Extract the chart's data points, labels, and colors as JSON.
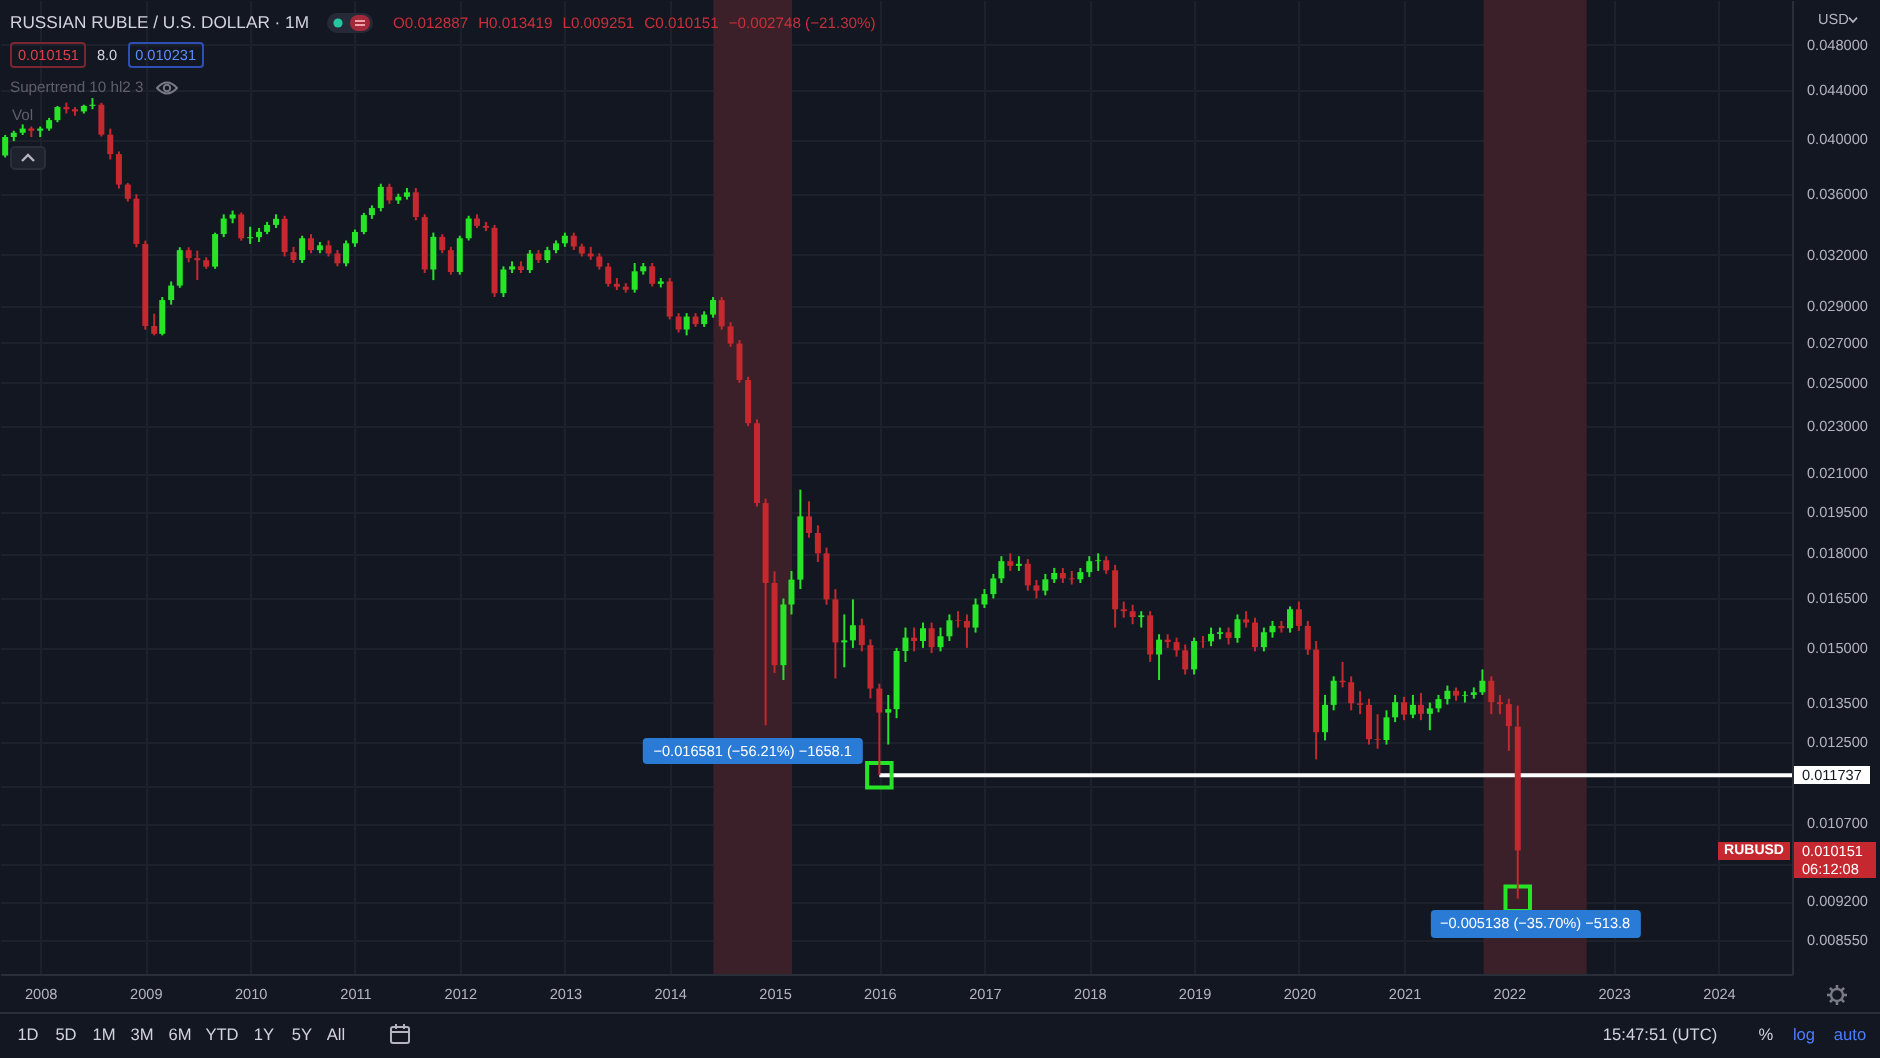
{
  "chart_data": {
    "type": "candlestick",
    "title": "RUSSIAN RUBLE / U.S. DOLLAR · 1M",
    "xlim": [
      "2007-08-14",
      "2024-09-13"
    ],
    "xticks": [
      "2008",
      "2009",
      "2010",
      "2011",
      "2012",
      "2013",
      "2014",
      "2015",
      "2016",
      "2017",
      "2018",
      "2019",
      "2020",
      "2021",
      "2022",
      "2023",
      "2024"
    ],
    "ylim": [
      0.008,
      0.0523
    ],
    "yticks": [
      {
        "value": 0.048,
        "label": "0.048000"
      },
      {
        "value": 0.044,
        "label": "0.044000"
      },
      {
        "value": 0.04,
        "label": "0.040000"
      },
      {
        "value": 0.036,
        "label": "0.036000"
      },
      {
        "value": 0.032,
        "label": "0.032000"
      },
      {
        "value": 0.029,
        "label": "0.029000"
      },
      {
        "value": 0.027,
        "label": "0.027000"
      },
      {
        "value": 0.025,
        "label": "0.025000"
      },
      {
        "value": 0.023,
        "label": "0.023000"
      },
      {
        "value": 0.021,
        "label": "0.021000"
      },
      {
        "value": 0.0195,
        "label": "0.019500"
      },
      {
        "value": 0.018,
        "label": "0.018000"
      },
      {
        "value": 0.0165,
        "label": "0.016500"
      },
      {
        "value": 0.015,
        "label": "0.015000"
      },
      {
        "value": 0.0135,
        "label": "0.013500"
      },
      {
        "value": 0.0125,
        "label": "0.012500"
      },
      {
        "value": 0.0115,
        "label": null
      },
      {
        "value": 0.0107,
        "label": "0.010700"
      },
      {
        "value": 0.0099,
        "label": null
      },
      {
        "value": 0.0092,
        "label": "0.009200"
      },
      {
        "value": 0.00855,
        "label": "0.008550"
      }
    ],
    "log": true,
    "grid": true,
    "series": [
      {
        "type": "line",
        "x": [
          "2016-01",
          "2024-09-13"
        ],
        "values": [
          0.011737,
          0.011737
        ],
        "color": "#ffffff",
        "value_labels": [
          null,
          "0.011737"
        ]
      },
      {
        "type": "scatter",
        "x": [
          "2016-01",
          "2022-02"
        ],
        "values": [
          0.011737,
          0.009251
        ],
        "color": "#28e428",
        "marker": "square"
      },
      {
        "x": [
          "2007-09",
          "2007-10",
          "2007-11",
          "2007-12",
          "2008-01",
          "2008-02",
          "2008-03",
          "2008-04",
          "2008-05",
          "2008-06",
          "2008-07",
          "2008-08",
          "2008-09",
          "2008-10",
          "2008-11",
          "2008-12",
          "2009-01",
          "2009-02",
          "2009-03",
          "2009-04",
          "2009-05",
          "2009-06",
          "2009-07",
          "2009-08",
          "2009-09",
          "2009-10",
          "2009-11",
          "2009-12",
          "2010-01",
          "2010-02",
          "2010-03",
          "2010-04",
          "2010-05",
          "2010-06",
          "2010-07",
          "2010-08",
          "2010-09",
          "2010-10",
          "2010-11",
          "2010-12",
          "2011-01",
          "2011-02",
          "2011-03",
          "2011-04",
          "2011-05",
          "2011-06",
          "2011-07",
          "2011-08",
          "2011-09",
          "2011-10",
          "2011-11",
          "2011-12",
          "2012-01",
          "2012-02",
          "2012-03",
          "2012-04",
          "2012-05",
          "2012-06",
          "2012-07",
          "2012-08",
          "2012-09",
          "2012-10",
          "2012-11",
          "2012-12",
          "2013-01",
          "2013-02",
          "2013-03",
          "2013-04",
          "2013-05",
          "2013-06",
          "2013-07",
          "2013-08",
          "2013-09",
          "2013-10",
          "2013-11",
          "2013-12",
          "2014-01",
          "2014-02",
          "2014-03",
          "2014-04",
          "2014-05",
          "2014-06",
          "2014-07",
          "2014-08",
          "2014-09",
          "2014-10",
          "2014-11",
          "2014-12",
          "2015-01",
          "2015-02",
          "2015-03",
          "2015-04",
          "2015-05",
          "2015-06",
          "2015-07",
          "2015-08",
          "2015-09",
          "2015-10",
          "2015-11",
          "2015-12",
          "2016-01",
          "2016-02",
          "2016-03",
          "2016-04",
          "2016-05",
          "2016-06",
          "2016-07",
          "2016-08",
          "2016-09",
          "2016-10",
          "2016-11",
          "2016-12",
          "2017-01",
          "2017-02",
          "2017-03",
          "2017-04",
          "2017-05",
          "2017-06",
          "2017-07",
          "2017-08",
          "2017-09",
          "2017-10",
          "2017-11",
          "2017-12",
          "2018-01",
          "2018-02",
          "2018-03",
          "2018-04",
          "2018-05",
          "2018-06",
          "2018-07",
          "2018-08",
          "2018-09",
          "2018-10",
          "2018-11",
          "2018-12",
          "2019-01",
          "2019-02",
          "2019-03",
          "2019-04",
          "2019-05",
          "2019-06",
          "2019-07",
          "2019-08",
          "2019-09",
          "2019-10",
          "2019-11",
          "2019-12",
          "2020-01",
          "2020-02",
          "2020-03",
          "2020-04",
          "2020-05",
          "2020-06",
          "2020-07",
          "2020-08",
          "2020-09",
          "2020-10",
          "2020-11",
          "2020-12",
          "2021-01",
          "2021-02",
          "2021-03",
          "2021-04",
          "2021-05",
          "2021-06",
          "2021-07",
          "2021-08",
          "2021-09",
          "2021-10",
          "2021-11",
          "2021-12",
          "2022-01",
          "2022-02"
        ],
        "ohlc": [
          [
            0.03876,
            0.04032,
            0.03861,
            0.04016
          ],
          [
            0.04016,
            0.04065,
            0.03984,
            0.04049
          ],
          [
            0.04049,
            0.04115,
            0.04032,
            0.04082
          ],
          [
            0.04082,
            0.04098,
            0.04016,
            0.04065
          ],
          [
            0.04065,
            0.04098,
            0.04016,
            0.04082
          ],
          [
            0.04082,
            0.04167,
            0.04065,
            0.04149
          ],
          [
            0.04149,
            0.04264,
            0.04132,
            0.04255
          ],
          [
            0.04255,
            0.04292,
            0.04202,
            0.04237
          ],
          [
            0.04237,
            0.04255,
            0.04184,
            0.04219
          ],
          [
            0.04219,
            0.04274,
            0.04202,
            0.04264
          ],
          [
            0.04264,
            0.04329,
            0.04237,
            0.04274
          ],
          [
            0.04274,
            0.0429,
            0.0402,
            0.04034
          ],
          [
            0.04034,
            0.04082,
            0.03846,
            0.03886
          ],
          [
            0.03886,
            0.03906,
            0.03636,
            0.03664
          ],
          [
            0.03664,
            0.03676,
            0.03546,
            0.03566
          ],
          [
            0.03566,
            0.03597,
            0.03247,
            0.03268
          ],
          [
            0.03268,
            0.03289,
            0.0277,
            0.0279
          ],
          [
            0.0279,
            0.02857,
            0.0274,
            0.02748
          ],
          [
            0.02748,
            0.0295,
            0.0274,
            0.02933
          ],
          [
            0.02933,
            0.0304,
            0.02907,
            0.03016
          ],
          [
            0.03016,
            0.03247,
            0.03003,
            0.03229
          ],
          [
            0.03229,
            0.03247,
            0.03155,
            0.0318
          ],
          [
            0.0318,
            0.03226,
            0.03048,
            0.03167
          ],
          [
            0.03167,
            0.03185,
            0.03115,
            0.03128
          ],
          [
            0.03128,
            0.0334,
            0.03115,
            0.03331
          ],
          [
            0.03331,
            0.0346,
            0.03311,
            0.03432
          ],
          [
            0.03432,
            0.03485,
            0.03401,
            0.03459
          ],
          [
            0.03459,
            0.03472,
            0.03289,
            0.03304
          ],
          [
            0.03304,
            0.03378,
            0.03268,
            0.03311
          ],
          [
            0.03311,
            0.0337,
            0.0328,
            0.03345
          ],
          [
            0.03345,
            0.0341,
            0.0333,
            0.0339
          ],
          [
            0.0339,
            0.0346,
            0.0337,
            0.0343
          ],
          [
            0.0343,
            0.0345,
            0.0319,
            0.03217
          ],
          [
            0.03217,
            0.0325,
            0.0315,
            0.03168
          ],
          [
            0.03168,
            0.0332,
            0.0315,
            0.03304
          ],
          [
            0.03304,
            0.0333,
            0.0321,
            0.03229
          ],
          [
            0.03229,
            0.0328,
            0.0321,
            0.03259
          ],
          [
            0.03259,
            0.0329,
            0.0319,
            0.03208
          ],
          [
            0.03208,
            0.0323,
            0.0313,
            0.03148
          ],
          [
            0.03148,
            0.0329,
            0.0313,
            0.03272
          ],
          [
            0.03272,
            0.0336,
            0.0325,
            0.03344
          ],
          [
            0.03344,
            0.0347,
            0.0333,
            0.03455
          ],
          [
            0.03455,
            0.0352,
            0.0343,
            0.03502
          ],
          [
            0.03502,
            0.0367,
            0.0348,
            0.03648
          ],
          [
            0.03648,
            0.0367,
            0.0353,
            0.03554
          ],
          [
            0.03554,
            0.036,
            0.0353,
            0.03579
          ],
          [
            0.03579,
            0.0364,
            0.0356,
            0.0361
          ],
          [
            0.0361,
            0.0364,
            0.0342,
            0.03442
          ],
          [
            0.03442,
            0.0346,
            0.0309,
            0.03111
          ],
          [
            0.03111,
            0.0334,
            0.03048,
            0.03313
          ],
          [
            0.03313,
            0.0333,
            0.0321,
            0.03229
          ],
          [
            0.03229,
            0.0325,
            0.0308,
            0.03096
          ],
          [
            0.03096,
            0.0332,
            0.0308,
            0.03304
          ],
          [
            0.03304,
            0.0345,
            0.0329,
            0.03432
          ],
          [
            0.03432,
            0.0346,
            0.0337,
            0.03384
          ],
          [
            0.03384,
            0.0341,
            0.0335,
            0.03371
          ],
          [
            0.03371,
            0.0339,
            0.0295,
            0.02972
          ],
          [
            0.02972,
            0.0313,
            0.0295,
            0.03111
          ],
          [
            0.03111,
            0.0316,
            0.0309,
            0.0313
          ],
          [
            0.0313,
            0.0316,
            0.0309,
            0.03108
          ],
          [
            0.03108,
            0.0323,
            0.0309,
            0.03208
          ],
          [
            0.03208,
            0.0323,
            0.0315,
            0.03168
          ],
          [
            0.03168,
            0.0325,
            0.0315,
            0.03229
          ],
          [
            0.03229,
            0.0329,
            0.0321,
            0.03272
          ],
          [
            0.03272,
            0.0334,
            0.0325,
            0.0332
          ],
          [
            0.0332,
            0.0334,
            0.0323,
            0.03252
          ],
          [
            0.03252,
            0.0327,
            0.0319,
            0.03208
          ],
          [
            0.03208,
            0.0325,
            0.0317,
            0.0319
          ],
          [
            0.0319,
            0.0321,
            0.0311,
            0.03128
          ],
          [
            0.03128,
            0.0315,
            0.0301,
            0.03026
          ],
          [
            0.03026,
            0.0306,
            0.0299,
            0.03009
          ],
          [
            0.03009,
            0.0303,
            0.02975,
            0.02992
          ],
          [
            0.02992,
            0.0315,
            0.02975,
            0.031
          ],
          [
            0.031,
            0.0315,
            0.0308,
            0.0313
          ],
          [
            0.0313,
            0.0315,
            0.0301,
            0.03026
          ],
          [
            0.03026,
            0.0306,
            0.03005,
            0.0304
          ],
          [
            0.0304,
            0.0306,
            0.02825,
            0.02841
          ],
          [
            0.02841,
            0.0286,
            0.02755,
            0.02771
          ],
          [
            0.02771,
            0.0286,
            0.0274,
            0.02841
          ],
          [
            0.02841,
            0.0286,
            0.02785,
            0.028
          ],
          [
            0.028,
            0.0287,
            0.02785,
            0.02852
          ],
          [
            0.02852,
            0.0295,
            0.02835,
            0.02933
          ],
          [
            0.02933,
            0.0295,
            0.0277,
            0.02788
          ],
          [
            0.02788,
            0.0281,
            0.0268,
            0.02697
          ],
          [
            0.02697,
            0.02715,
            0.025,
            0.02514
          ],
          [
            0.02514,
            0.0253,
            0.023,
            0.02313
          ],
          [
            0.02313,
            0.0233,
            0.0197,
            0.01983
          ],
          [
            0.01983,
            0.02,
            0.01292,
            0.017
          ],
          [
            0.017,
            0.01739,
            0.01429,
            0.01451
          ],
          [
            0.01451,
            0.0165,
            0.0141,
            0.01631
          ],
          [
            0.01631,
            0.0174,
            0.016,
            0.01711
          ],
          [
            0.01711,
            0.02035,
            0.0168,
            0.01933
          ],
          [
            0.01933,
            0.0199,
            0.01855,
            0.01872
          ],
          [
            0.01872,
            0.019,
            0.0177,
            0.018
          ],
          [
            0.018,
            0.0182,
            0.0163,
            0.01647
          ],
          [
            0.01647,
            0.0168,
            0.01414,
            0.01516
          ],
          [
            0.01516,
            0.016,
            0.01445,
            0.01522
          ],
          [
            0.01522,
            0.01647,
            0.015,
            0.01567
          ],
          [
            0.01567,
            0.01587,
            0.0149,
            0.01508
          ],
          [
            0.01508,
            0.01525,
            0.01361,
            0.01387
          ],
          [
            0.01387,
            0.014,
            0.01174,
            0.01324
          ],
          [
            0.01324,
            0.0137,
            0.01245,
            0.01333
          ],
          [
            0.01333,
            0.015,
            0.0131,
            0.01491
          ],
          [
            0.01491,
            0.0156,
            0.0146,
            0.0153
          ],
          [
            0.0153,
            0.0156,
            0.0149,
            0.0152
          ],
          [
            0.0152,
            0.01575,
            0.015,
            0.01558
          ],
          [
            0.01558,
            0.01575,
            0.01485,
            0.01502
          ],
          [
            0.01502,
            0.0156,
            0.0149,
            0.01534
          ],
          [
            0.01534,
            0.016,
            0.0152,
            0.01582
          ],
          [
            0.01582,
            0.0161,
            0.0156,
            0.0158
          ],
          [
            0.0158,
            0.016,
            0.015,
            0.0156
          ],
          [
            0.0156,
            0.0165,
            0.01545,
            0.01631
          ],
          [
            0.01631,
            0.0168,
            0.0162,
            0.01664
          ],
          [
            0.01664,
            0.0173,
            0.0165,
            0.01715
          ],
          [
            0.01715,
            0.0179,
            0.017,
            0.01773
          ],
          [
            0.01773,
            0.018,
            0.0174,
            0.01757
          ],
          [
            0.01757,
            0.0179,
            0.0174,
            0.01764
          ],
          [
            0.01764,
            0.0178,
            0.01675,
            0.01692
          ],
          [
            0.01692,
            0.0171,
            0.0165,
            0.01675
          ],
          [
            0.01675,
            0.0173,
            0.0166,
            0.01712
          ],
          [
            0.01712,
            0.0175,
            0.017,
            0.01733
          ],
          [
            0.01733,
            0.0175,
            0.017,
            0.01715
          ],
          [
            0.01715,
            0.0174,
            0.01695,
            0.01712
          ],
          [
            0.01712,
            0.0175,
            0.017,
            0.01736
          ],
          [
            0.01736,
            0.0179,
            0.0172,
            0.01773
          ],
          [
            0.01773,
            0.018,
            0.0174,
            0.01776
          ],
          [
            0.01776,
            0.0179,
            0.0173,
            0.01742
          ],
          [
            0.01742,
            0.0176,
            0.0156,
            0.01616
          ],
          [
            0.01616,
            0.0164,
            0.0159,
            0.0161
          ],
          [
            0.0161,
            0.0163,
            0.0157,
            0.01592
          ],
          [
            0.01592,
            0.0161,
            0.0156,
            0.01597
          ],
          [
            0.01597,
            0.0161,
            0.0146,
            0.01481
          ],
          [
            0.01481,
            0.0154,
            0.0141,
            0.01524
          ],
          [
            0.01524,
            0.0154,
            0.015,
            0.01517
          ],
          [
            0.01517,
            0.0153,
            0.01475,
            0.01493
          ],
          [
            0.01493,
            0.0151,
            0.01425,
            0.01439
          ],
          [
            0.01439,
            0.0153,
            0.01425,
            0.0152
          ],
          [
            0.0152,
            0.01535,
            0.015,
            0.01519
          ],
          [
            0.01519,
            0.0156,
            0.01505,
            0.01541
          ],
          [
            0.01541,
            0.0156,
            0.01525,
            0.01546
          ],
          [
            0.01546,
            0.0156,
            0.0151,
            0.01529
          ],
          [
            0.01529,
            0.016,
            0.01515,
            0.01585
          ],
          [
            0.01585,
            0.0161,
            0.0156,
            0.01575
          ],
          [
            0.01575,
            0.0159,
            0.0149,
            0.01502
          ],
          [
            0.01502,
            0.0156,
            0.0149,
            0.01546
          ],
          [
            0.01546,
            0.0158,
            0.0153,
            0.01565
          ],
          [
            0.01565,
            0.0158,
            0.01545,
            0.01558
          ],
          [
            0.01558,
            0.01625,
            0.01545,
            0.01616
          ],
          [
            0.01616,
            0.0164,
            0.0155,
            0.01565
          ],
          [
            0.01565,
            0.0158,
            0.0148,
            0.01495
          ],
          [
            0.01495,
            0.0152,
            0.0121,
            0.01275
          ],
          [
            0.01275,
            0.0137,
            0.01255,
            0.01344
          ],
          [
            0.01344,
            0.0142,
            0.0133,
            0.01408
          ],
          [
            0.01408,
            0.0146,
            0.0139,
            0.01404
          ],
          [
            0.01404,
            0.0142,
            0.0133,
            0.01348
          ],
          [
            0.01348,
            0.0138,
            0.0132,
            0.01344
          ],
          [
            0.01344,
            0.0136,
            0.01245,
            0.01258
          ],
          [
            0.01258,
            0.0132,
            0.01235,
            0.01256
          ],
          [
            0.01256,
            0.0133,
            0.01245,
            0.01312
          ],
          [
            0.01312,
            0.0137,
            0.013,
            0.01351
          ],
          [
            0.01351,
            0.01365,
            0.01305,
            0.01319
          ],
          [
            0.01319,
            0.0137,
            0.0131,
            0.01344
          ],
          [
            0.01344,
            0.01375,
            0.01305,
            0.01321
          ],
          [
            0.01321,
            0.0135,
            0.0128,
            0.01335
          ],
          [
            0.01335,
            0.0137,
            0.01325,
            0.01359
          ],
          [
            0.01359,
            0.01395,
            0.01345,
            0.01381
          ],
          [
            0.01381,
            0.0139,
            0.01355,
            0.01368
          ],
          [
            0.01368,
            0.0138,
            0.0135,
            0.0137
          ],
          [
            0.0137,
            0.0139,
            0.0136,
            0.01377
          ],
          [
            0.01377,
            0.01439,
            0.0137,
            0.01408
          ],
          [
            0.01408,
            0.0142,
            0.0132,
            0.01351
          ],
          [
            0.01351,
            0.0137,
            0.0132,
            0.01346
          ],
          [
            0.01346,
            0.0136,
            0.0123,
            0.0129
          ],
          [
            0.012887,
            0.013419,
            0.009251,
            0.010151
          ]
        ],
        "colors": [
          "#28e428",
          "#28e428",
          "#28e428",
          "#c5282e",
          "#28e428",
          "#28e428",
          "#28e428",
          "#c5282e",
          "#c5282e",
          "#28e428",
          "#28e428",
          "#c5282e",
          "#c5282e",
          "#c5282e",
          "#c5282e",
          "#c5282e",
          "#c5282e",
          "#c5282e",
          "#28e428",
          "#28e428",
          "#28e428",
          "#c5282e",
          "#c5282e",
          "#c5282e",
          "#28e428",
          "#28e428",
          "#28e428",
          "#c5282e",
          "#28e428",
          "#28e428",
          "#28e428",
          "#28e428",
          "#c5282e",
          "#c5282e",
          "#28e428",
          "#c5282e",
          "#28e428",
          "#c5282e",
          "#c5282e",
          "#28e428",
          "#28e428",
          "#28e428",
          "#28e428",
          "#28e428",
          "#c5282e",
          "#28e428",
          "#28e428",
          "#c5282e",
          "#c5282e",
          "#28e428",
          "#c5282e",
          "#c5282e",
          "#28e428",
          "#28e428",
          "#c5282e",
          "#c5282e",
          "#c5282e",
          "#28e428",
          "#28e428",
          "#c5282e",
          "#28e428",
          "#c5282e",
          "#28e428",
          "#28e428",
          "#28e428",
          "#c5282e",
          "#c5282e",
          "#c5282e",
          "#c5282e",
          "#c5282e",
          "#c5282e",
          "#c5282e",
          "#28e428",
          "#28e428",
          "#c5282e",
          "#28e428",
          "#c5282e",
          "#c5282e",
          "#28e428",
          "#c5282e",
          "#28e428",
          "#28e428",
          "#c5282e",
          "#c5282e",
          "#c5282e",
          "#c5282e",
          "#c5282e",
          "#c5282e",
          "#c5282e",
          "#28e428",
          "#28e428",
          "#28e428",
          "#c5282e",
          "#c5282e",
          "#c5282e",
          "#c5282e",
          "#28e428",
          "#28e428",
          "#c5282e",
          "#c5282e",
          "#c5282e",
          "#28e428",
          "#28e428",
          "#28e428",
          "#c5282e",
          "#28e428",
          "#c5282e",
          "#28e428",
          "#28e428",
          "#c5282e",
          "#c5282e",
          "#28e428",
          "#28e428",
          "#28e428",
          "#28e428",
          "#c5282e",
          "#28e428",
          "#c5282e",
          "#c5282e",
          "#28e428",
          "#28e428",
          "#c5282e",
          "#c5282e",
          "#28e428",
          "#28e428",
          "#28e428",
          "#c5282e",
          "#c5282e",
          "#c5282e",
          "#c5282e",
          "#28e428",
          "#c5282e",
          "#28e428",
          "#c5282e",
          "#c5282e",
          "#c5282e",
          "#28e428",
          "#c5282e",
          "#28e428",
          "#28e428",
          "#c5282e",
          "#28e428",
          "#c5282e",
          "#c5282e",
          "#28e428",
          "#28e428",
          "#c5282e",
          "#28e428",
          "#c5282e",
          "#c5282e",
          "#c5282e",
          "#28e428",
          "#28e428",
          "#c5282e",
          "#c5282e",
          "#c5282e",
          "#c5282e",
          "#c5282e",
          "#28e428",
          "#28e428",
          "#c5282e",
          "#28e428",
          "#c5282e",
          "#28e428",
          "#28e428",
          "#28e428",
          "#c5282e",
          "#28e428",
          "#28e428",
          "#28e428",
          "#c5282e",
          "#c5282e",
          "#c5282e",
          "#c5282e"
        ]
      }
    ],
    "bands": [
      {
        "axis": "x",
        "from": "2014-06-02",
        "to": "2015-03-03",
        "color": "#3b1f29"
      },
      {
        "axis": "x",
        "from": "2021-10-05",
        "to": "2022-09-29",
        "color": "#3b1f29"
      }
    ],
    "annotations": [
      "O0.012887",
      "H0.013419",
      "L0.009251",
      "C0.010151",
      "−0.002748 (−21.30%)",
      "0.010151",
      "8.0",
      "0.010231",
      "Supertrend 10 hl2 3",
      "Vol",
      "USD",
      "1D",
      "5D",
      "1M",
      "3M",
      "6M",
      "YTD",
      "1Y",
      "5Y",
      "All",
      "15:47:51 (UTC)",
      "%",
      "log",
      "auto",
      "RUBUSD",
      "0.010151",
      "06:12:08",
      {
        "text": "−0.016581 (−56.21%) −1658.1",
        "x": "2014-12",
        "y": 0.01292
      },
      {
        "text": "−0.005138 (−35.70%) −513.8",
        "x": "2022-02",
        "y": 0.009251
      }
    ]
  }
}
